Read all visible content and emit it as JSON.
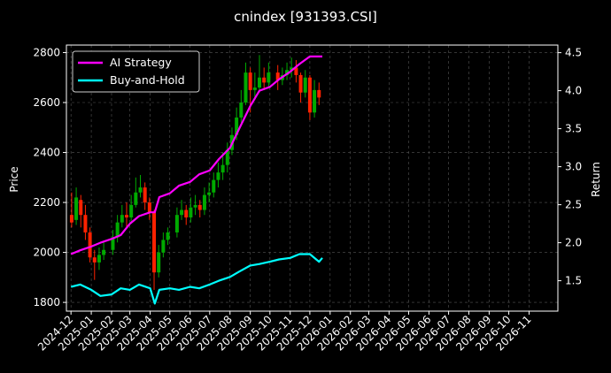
{
  "chart_data": {
    "type": "line",
    "title": "cnindex [931393.CSI]",
    "ylabel": "Price",
    "y2label": "Return",
    "x_tick_labels": [
      "2024-12",
      "2025-01",
      "2025-02",
      "2025-03",
      "2025-04",
      "2025-05",
      "2025-06",
      "2025-07",
      "2025-08",
      "2025-09",
      "2025-10",
      "2025-11",
      "2025-12",
      "2026-01",
      "2026-02",
      "2026-03",
      "2026-04",
      "2026-05",
      "2026-06",
      "2026-07",
      "2026-08",
      "2026-09",
      "2026-10",
      "2026-11"
    ],
    "y_ticks": [
      1800,
      2000,
      2200,
      2400,
      2600,
      2800
    ],
    "y2_ticks": [
      1.5,
      2.0,
      2.5,
      3.0,
      3.5,
      4.0,
      4.5
    ],
    "ylim": [
      1765,
      2830
    ],
    "y2lim": [
      1.1,
      4.6
    ],
    "grid": true,
    "legend": {
      "position": "top-left",
      "entries": [
        "AI Strategy",
        "Buy-and-Hold"
      ]
    },
    "colors": {
      "ai": "#ff00ff",
      "bh": "#00ffff",
      "up": "#00aa00",
      "down": "#ff2200",
      "grid": "#555555"
    },
    "candles": [
      {
        "d": "2024-12-02",
        "v": [
          2150,
          2120,
          2240,
          2100
        ]
      },
      {
        "d": "2024-12-09",
        "v": [
          2130,
          2220,
          2260,
          2110
        ]
      },
      {
        "d": "2024-12-16",
        "v": [
          2210,
          2150,
          2230,
          2100
        ]
      },
      {
        "d": "2024-12-23",
        "v": [
          2150,
          2080,
          2190,
          2050
        ]
      },
      {
        "d": "2024-12-30",
        "v": [
          2080,
          1980,
          2100,
          1960
        ]
      },
      {
        "d": "2025-01-06",
        "v": [
          1980,
          1960,
          2010,
          1890
        ]
      },
      {
        "d": "2025-01-13",
        "v": [
          1960,
          1990,
          2020,
          1930
        ]
      },
      {
        "d": "2025-01-20",
        "v": [
          1990,
          2010,
          2040,
          1970
        ]
      },
      {
        "d": "2025-02-03",
        "v": [
          2010,
          2060,
          2090,
          1990
        ]
      },
      {
        "d": "2025-02-10",
        "v": [
          2060,
          2120,
          2150,
          2040
        ]
      },
      {
        "d": "2025-02-17",
        "v": [
          2120,
          2150,
          2190,
          2100
        ]
      },
      {
        "d": "2025-02-24",
        "v": [
          2150,
          2140,
          2200,
          2100
        ]
      },
      {
        "d": "2025-03-03",
        "v": [
          2140,
          2190,
          2230,
          2120
        ]
      },
      {
        "d": "2025-03-10",
        "v": [
          2190,
          2240,
          2300,
          2180
        ]
      },
      {
        "d": "2025-03-17",
        "v": [
          2240,
          2260,
          2310,
          2220
        ]
      },
      {
        "d": "2025-03-24",
        "v": [
          2260,
          2200,
          2280,
          2170
        ]
      },
      {
        "d": "2025-03-31",
        "v": [
          2200,
          2160,
          2220,
          2130
        ]
      },
      {
        "d": "2025-04-07",
        "v": [
          2160,
          1920,
          2170,
          1850
        ]
      },
      {
        "d": "2025-04-14",
        "v": [
          1920,
          2000,
          2030,
          1900
        ]
      },
      {
        "d": "2025-04-21",
        "v": [
          2000,
          2050,
          2080,
          1980
        ]
      },
      {
        "d": "2025-04-28",
        "v": [
          2050,
          2080,
          2100,
          2030
        ]
      },
      {
        "d": "2025-05-12",
        "v": [
          2080,
          2150,
          2180,
          2060
        ]
      },
      {
        "d": "2025-05-19",
        "v": [
          2150,
          2170,
          2210,
          2130
        ]
      },
      {
        "d": "2025-05-26",
        "v": [
          2170,
          2140,
          2190,
          2110
        ]
      },
      {
        "d": "2025-06-02",
        "v": [
          2140,
          2180,
          2220,
          2120
        ]
      },
      {
        "d": "2025-06-09",
        "v": [
          2180,
          2190,
          2230,
          2150
        ]
      },
      {
        "d": "2025-06-16",
        "v": [
          2190,
          2170,
          2210,
          2140
        ]
      },
      {
        "d": "2025-06-23",
        "v": [
          2170,
          2230,
          2260,
          2150
        ]
      },
      {
        "d": "2025-06-30",
        "v": [
          2230,
          2240,
          2280,
          2200
        ]
      },
      {
        "d": "2025-07-07",
        "v": [
          2240,
          2290,
          2320,
          2220
        ]
      },
      {
        "d": "2025-07-14",
        "v": [
          2290,
          2320,
          2360,
          2260
        ]
      },
      {
        "d": "2025-07-21",
        "v": [
          2320,
          2350,
          2400,
          2290
        ]
      },
      {
        "d": "2025-07-28",
        "v": [
          2350,
          2410,
          2440,
          2320
        ]
      },
      {
        "d": "2025-08-04",
        "v": [
          2410,
          2470,
          2500,
          2390
        ]
      },
      {
        "d": "2025-08-11",
        "v": [
          2470,
          2540,
          2580,
          2450
        ]
      },
      {
        "d": "2025-08-18",
        "v": [
          2540,
          2600,
          2650,
          2520
        ]
      },
      {
        "d": "2025-08-25",
        "v": [
          2600,
          2720,
          2760,
          2590
        ]
      },
      {
        "d": "2025-09-01",
        "v": [
          2720,
          2650,
          2740,
          2560
        ]
      },
      {
        "d": "2025-09-08",
        "v": [
          2650,
          2660,
          2720,
          2610
        ]
      },
      {
        "d": "2025-09-15",
        "v": [
          2660,
          2700,
          2790,
          2640
        ]
      },
      {
        "d": "2025-09-22",
        "v": [
          2700,
          2680,
          2740,
          2650
        ]
      },
      {
        "d": "2025-09-29",
        "v": [
          2680,
          2720,
          2760,
          2660
        ]
      },
      {
        "d": "2025-10-13",
        "v": [
          2720,
          2690,
          2750,
          2650
        ]
      },
      {
        "d": "2025-10-20",
        "v": [
          2690,
          2710,
          2740,
          2670
        ]
      },
      {
        "d": "2025-10-27",
        "v": [
          2710,
          2730,
          2760,
          2690
        ]
      },
      {
        "d": "2025-11-03",
        "v": [
          2730,
          2740,
          2780,
          2700
        ]
      },
      {
        "d": "2025-11-10",
        "v": [
          2740,
          2710,
          2770,
          2680
        ]
      },
      {
        "d": "2025-11-17",
        "v": [
          2710,
          2640,
          2720,
          2600
        ]
      },
      {
        "d": "2025-11-24",
        "v": [
          2640,
          2700,
          2730,
          2620
        ]
      },
      {
        "d": "2025-12-01",
        "v": [
          2700,
          2560,
          2710,
          2530
        ]
      },
      {
        "d": "2025-12-08",
        "v": [
          2560,
          2650,
          2690,
          2540
        ]
      },
      {
        "d": "2025-12-15",
        "v": [
          2650,
          2620,
          2680,
          2590
        ]
      }
    ],
    "series": [
      {
        "name": "AI Strategy",
        "x": [
          "2024-12-01",
          "2024-12-15",
          "2025-01-01",
          "2025-01-15",
          "2025-02-01",
          "2025-02-15",
          "2025-03-01",
          "2025-03-15",
          "2025-04-01",
          "2025-04-08",
          "2025-04-15",
          "2025-05-01",
          "2025-05-15",
          "2025-06-01",
          "2025-06-15",
          "2025-07-01",
          "2025-07-15",
          "2025-08-01",
          "2025-08-15",
          "2025-09-01",
          "2025-09-15",
          "2025-10-01",
          "2025-10-15",
          "2025-11-01",
          "2025-11-15",
          "2025-12-01",
          "2025-12-15",
          "2025-12-20"
        ],
        "values": [
          1.85,
          1.9,
          1.95,
          2.0,
          2.05,
          2.1,
          2.25,
          2.35,
          2.4,
          2.4,
          2.6,
          2.65,
          2.75,
          2.8,
          2.9,
          2.95,
          3.1,
          3.25,
          3.5,
          3.8,
          4.0,
          4.05,
          4.15,
          4.25,
          4.35,
          4.45,
          4.45,
          4.45
        ]
      },
      {
        "name": "Buy-and-Hold",
        "x": [
          "2024-12-01",
          "2024-12-15",
          "2025-01-01",
          "2025-01-15",
          "2025-02-01",
          "2025-02-15",
          "2025-03-01",
          "2025-03-15",
          "2025-04-01",
          "2025-04-08",
          "2025-04-15",
          "2025-05-01",
          "2025-05-15",
          "2025-06-01",
          "2025-06-15",
          "2025-07-01",
          "2025-07-15",
          "2025-08-01",
          "2025-08-15",
          "2025-09-01",
          "2025-09-15",
          "2025-10-01",
          "2025-10-15",
          "2025-11-01",
          "2025-11-15",
          "2025-12-01",
          "2025-12-15",
          "2025-12-20"
        ],
        "values": [
          1.42,
          1.45,
          1.38,
          1.3,
          1.32,
          1.4,
          1.38,
          1.45,
          1.4,
          1.2,
          1.38,
          1.4,
          1.38,
          1.42,
          1.4,
          1.45,
          1.5,
          1.55,
          1.62,
          1.7,
          1.72,
          1.75,
          1.78,
          1.8,
          1.85,
          1.85,
          1.75,
          1.8
        ]
      }
    ]
  }
}
